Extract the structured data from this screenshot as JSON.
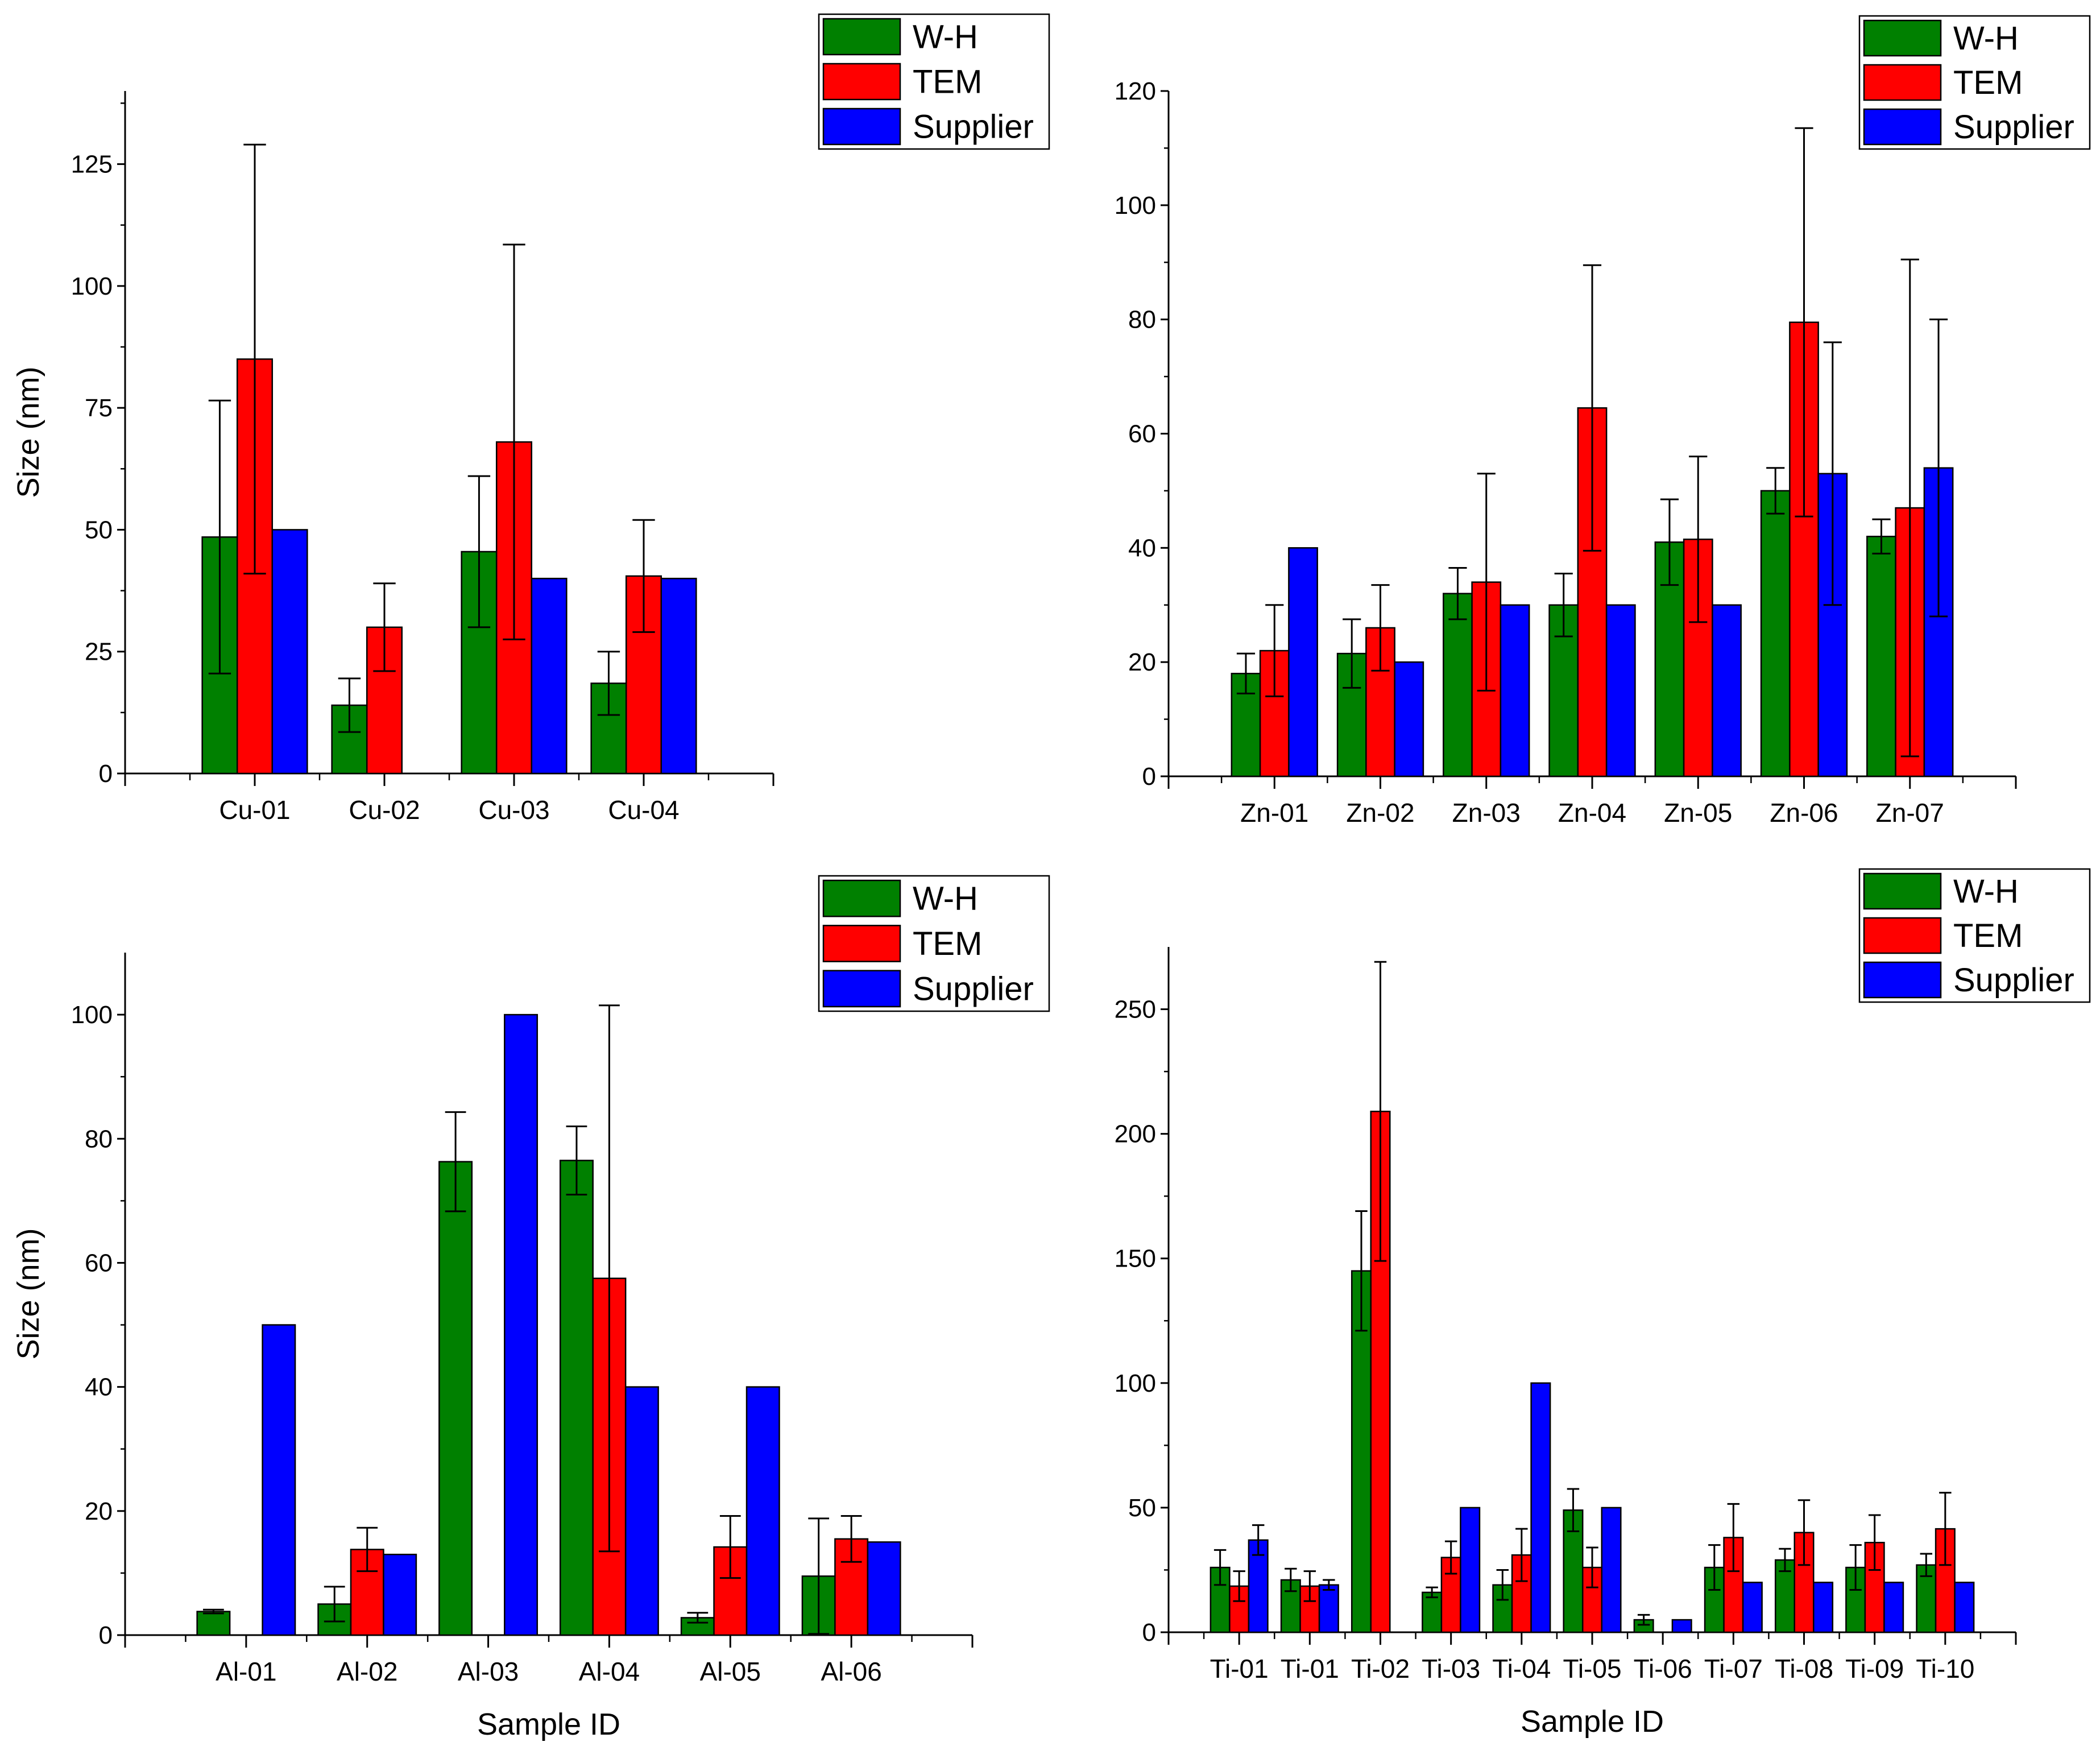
{
  "colors": {
    "W-H": "#008000",
    "TEM": "#ff0000",
    "Supplier": "#0000ff"
  },
  "chart_data": [
    {
      "type": "bar",
      "panel": "top-left",
      "title": "",
      "xlabel": "",
      "ylabel": "Size (nm)",
      "ylim": [
        0,
        140
      ],
      "yticks": [
        0,
        25,
        50,
        75,
        100,
        125
      ],
      "legend": {
        "position": "top-right",
        "entries": [
          "W-H",
          "TEM",
          "Supplier"
        ]
      },
      "categories": [
        "Cu-01",
        "Cu-02",
        "Cu-03",
        "Cu-04"
      ],
      "series": [
        {
          "name": "W-H",
          "values": [
            48.5,
            14,
            45.5,
            18.5
          ],
          "errors": [
            28,
            5.5,
            15.5,
            6.5
          ]
        },
        {
          "name": "TEM",
          "values": [
            85,
            30,
            68,
            40.5
          ],
          "errors": [
            44,
            9,
            40.5,
            11.5
          ]
        },
        {
          "name": "Supplier",
          "values": [
            50,
            null,
            40,
            40
          ],
          "errors": [
            null,
            null,
            null,
            null
          ]
        }
      ]
    },
    {
      "type": "bar",
      "panel": "top-right",
      "title": "",
      "xlabel": "",
      "ylabel": "",
      "ylim": [
        0,
        120
      ],
      "yticks": [
        0,
        20,
        40,
        60,
        80,
        100,
        120
      ],
      "legend": {
        "position": "top-right",
        "entries": [
          "W-H",
          "TEM",
          "Supplier"
        ]
      },
      "categories": [
        "Zn-01",
        "Zn-02",
        "Zn-03",
        "Zn-04",
        "Zn-05",
        "Zn-06",
        "Zn-07"
      ],
      "series": [
        {
          "name": "W-H",
          "values": [
            18,
            21.5,
            32,
            30,
            41,
            50,
            42
          ],
          "errors": [
            3.5,
            6,
            4.5,
            5.5,
            7.5,
            4,
            3
          ]
        },
        {
          "name": "TEM",
          "values": [
            22,
            26,
            34,
            64.5,
            41.5,
            79.5,
            47
          ],
          "errors": [
            8,
            7.5,
            19,
            25,
            14.5,
            34,
            43.5
          ]
        },
        {
          "name": "Supplier",
          "values": [
            40,
            20,
            30,
            30,
            30,
            53,
            54
          ],
          "errors": [
            null,
            null,
            null,
            null,
            null,
            23,
            26
          ]
        }
      ]
    },
    {
      "type": "bar",
      "panel": "bottom-left",
      "title": "",
      "xlabel": "Sample ID",
      "ylabel": "Size (nm)",
      "ylim": [
        0,
        110
      ],
      "yticks": [
        0,
        20,
        40,
        60,
        80,
        100
      ],
      "legend": {
        "position": "top-right",
        "entries": [
          "W-H",
          "TEM",
          "Supplier"
        ]
      },
      "categories": [
        "Al-01",
        "Al-02",
        "Al-03",
        "Al-04",
        "Al-05",
        "Al-06"
      ],
      "series": [
        {
          "name": "W-H",
          "values": [
            3.8,
            5,
            76.3,
            76.5,
            2.8,
            9.5
          ],
          "errors": [
            0.3,
            2.8,
            8,
            5.5,
            0.8,
            9.3
          ]
        },
        {
          "name": "TEM",
          "values": [
            null,
            13.8,
            null,
            57.5,
            14.2,
            15.5
          ],
          "errors": [
            null,
            3.5,
            null,
            44,
            5,
            3.7
          ]
        },
        {
          "name": "Supplier",
          "values": [
            50,
            13,
            100,
            40,
            40,
            15
          ],
          "errors": [
            null,
            null,
            null,
            null,
            null,
            null
          ]
        }
      ]
    },
    {
      "type": "bar",
      "panel": "bottom-right",
      "title": "",
      "xlabel": "Sample ID",
      "ylabel": "",
      "ylim": [
        0,
        275
      ],
      "yticks": [
        0,
        50,
        100,
        150,
        200,
        250
      ],
      "legend": {
        "position": "top-right",
        "entries": [
          "W-H",
          "TEM",
          "Supplier"
        ]
      },
      "categories": [
        "Ti-01",
        "Ti-01",
        "Ti-02",
        "Ti-03",
        "Ti-04",
        "Ti-05",
        "Ti-06",
        "Ti-07",
        "Ti-08",
        "Ti-09",
        "Ti-10"
      ],
      "series": [
        {
          "name": "W-H",
          "values": [
            26,
            21,
            145,
            16,
            19,
            49,
            5,
            26,
            29,
            26,
            27
          ],
          "errors": [
            7,
            4.5,
            24,
            2,
            6,
            8.5,
            2,
            9,
            4.5,
            9,
            4.5
          ]
        },
        {
          "name": "TEM",
          "values": [
            18.5,
            18.5,
            209,
            30,
            31,
            26,
            null,
            38,
            40,
            36,
            41.5
          ],
          "errors": [
            6,
            6,
            60,
            6.5,
            10.5,
            8,
            null,
            13.5,
            13,
            11,
            14.5
          ]
        },
        {
          "name": "Supplier",
          "values": [
            37,
            19,
            null,
            50,
            100,
            50,
            5,
            20,
            20,
            20,
            20
          ],
          "errors": [
            6,
            2,
            null,
            null,
            null,
            null,
            null,
            null,
            null,
            null,
            null
          ]
        }
      ]
    }
  ]
}
